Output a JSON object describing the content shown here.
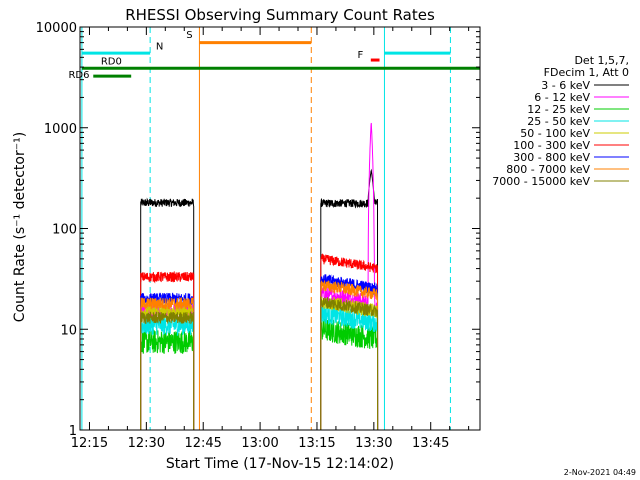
{
  "chart_data": {
    "type": "line",
    "title": "RHESSI Observing Summary Count Rates",
    "xlabel": "Start Time (17-Nov-15 12:14:02)",
    "ylabel": "Count Rate (s⁻¹ detector⁻¹)",
    "yscale": "log",
    "ylim": [
      1,
      10000
    ],
    "xlim_minutes": [
      12.5,
      118
    ],
    "x_ticks": [
      {
        "m": 15,
        "label": "12:15"
      },
      {
        "m": 30,
        "label": "12:30"
      },
      {
        "m": 45,
        "label": "12:45"
      },
      {
        "m": 60,
        "label": "13:00"
      },
      {
        "m": 75,
        "label": "13:15"
      },
      {
        "m": 90,
        "label": "13:30"
      },
      {
        "m": 105,
        "label": "13:45"
      }
    ],
    "y_ticks": [
      {
        "v": 1,
        "label": "1"
      },
      {
        "v": 10,
        "label": "10"
      },
      {
        "v": 100,
        "label": "100"
      },
      {
        "v": 1000,
        "label": "1000"
      },
      {
        "v": 10000,
        "label": "10000"
      }
    ],
    "legend_header": [
      "Det 1,5,7,",
      "FDecim 1, Att 0"
    ],
    "legend_position": "right",
    "series": [
      {
        "name": "3 - 6 keV",
        "color": "#000000",
        "seg1": 180,
        "seg2": 178,
        "noise": 0.04
      },
      {
        "name": "6 - 12 keV",
        "color": "#ff00ff",
        "seg1": 15,
        "seg2": 18,
        "noise": 0.08
      },
      {
        "name": "12 - 25 keV",
        "color": "#00cc00",
        "seg1": 7.5,
        "seg2": 8,
        "noise": 0.12
      },
      {
        "name": "25 - 50 keV",
        "color": "#00e5e5",
        "seg1": 11,
        "seg2": 11.5,
        "noise": 0.1
      },
      {
        "name": "50 - 100 keV",
        "color": "#cccc00",
        "seg1": 15,
        "seg2": 15,
        "noise": 0.07
      },
      {
        "name": "100 - 300 keV",
        "color": "#ff0000",
        "seg1": 33,
        "seg2": 40,
        "noise": 0.05
      },
      {
        "name": "300 - 800 keV",
        "color": "#0000ff",
        "seg1": 20,
        "seg2": 25,
        "noise": 0.06
      },
      {
        "name": "800 - 7000 keV",
        "color": "#ff8000",
        "seg1": 18,
        "seg2": 22,
        "noise": 0.06
      },
      {
        "name": "7000 - 15000 keV",
        "color": "#808000",
        "seg1": 13,
        "seg2": 15,
        "noise": 0.06
      }
    ],
    "data_intervals": [
      [
        28.5,
        42.5
      ],
      [
        76,
        91
      ]
    ],
    "spike": {
      "start": 88.5,
      "peak_time": 89.3,
      "end": 90.3,
      "peak_value": 1150,
      "color": "#ff00ff",
      "black_peak": 380
    },
    "vertical_markers": [
      {
        "m": 13.0,
        "color": "#00e5e5",
        "style": "solid"
      },
      {
        "m": 31.0,
        "color": "#00e5e5",
        "style": "dashed"
      },
      {
        "m": 44.0,
        "color": "#ff8000",
        "style": "solid"
      },
      {
        "m": 73.5,
        "color": "#ff8000",
        "style": "dashed"
      },
      {
        "m": 92.8,
        "color": "#00e5e5",
        "style": "solid"
      },
      {
        "m": 110.2,
        "color": "#00e5e5",
        "style": "dashed"
      }
    ],
    "status_bars": [
      {
        "label": "N",
        "color": "#00e5e5",
        "start": 13.0,
        "end": 31.0,
        "level": 5500,
        "label_at": 32.5,
        "label_level": 6000,
        "label_anchor": "start"
      },
      {
        "label": "",
        "color": "#00e5e5",
        "start": 92.8,
        "end": 110.2,
        "level": 5500
      },
      {
        "label": "S",
        "color": "#ff8000",
        "start": 44.0,
        "end": 73.5,
        "level": 7000,
        "label_at": 42.2,
        "label_level": 7800,
        "label_anchor": "end"
      },
      {
        "label": "F",
        "color": "#ff0000",
        "start": 89.2,
        "end": 91.5,
        "level": 4700,
        "label_at": 87.2,
        "label_level": 4900,
        "label_anchor": "end"
      },
      {
        "label": "RD0",
        "color": "#008000",
        "start": 13.0,
        "end": 118.0,
        "level": 3900,
        "label_at": 18.0,
        "label_level": 4250,
        "label_anchor": "start"
      },
      {
        "label": "RD6",
        "color": "#008000",
        "start": 16.0,
        "end": 26.0,
        "level": 3250,
        "label_at": 15.0,
        "label_level": 3100,
        "label_anchor": "end"
      }
    ]
  },
  "footer": {
    "date_stamp": "2-Nov-2021 04:49"
  }
}
